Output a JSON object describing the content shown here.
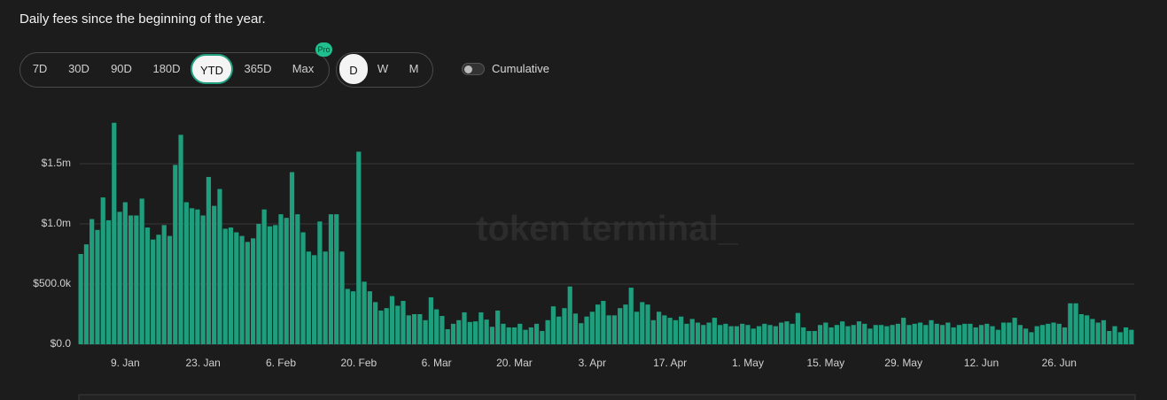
{
  "header": {
    "title": "Daily fees since the beginning of the year."
  },
  "range_buttons": [
    "7D",
    "30D",
    "90D",
    "180D",
    "YTD",
    "365D",
    "Max"
  ],
  "pro_badge": "Pro",
  "period_buttons": [
    "D",
    "W",
    "M"
  ],
  "toggle_label": "Cumulative",
  "watermark": "token terminal_",
  "chart_data": {
    "type": "bar",
    "color": "#1f9e7e",
    "grid": true,
    "ylim": [
      0,
      2000000
    ],
    "yticks": [
      {
        "value": 0,
        "label": "$0.0"
      },
      {
        "value": 500000,
        "label": "$500.0k"
      },
      {
        "value": 1000000,
        "label": "$1.0m"
      },
      {
        "value": 1500000,
        "label": "$1.5m"
      }
    ],
    "categories": [
      null,
      null,
      null,
      null,
      null,
      null,
      null,
      null,
      "9. Jan",
      null,
      null,
      null,
      null,
      null,
      null,
      null,
      null,
      null,
      null,
      null,
      null,
      null,
      "23. Jan",
      null,
      null,
      null,
      null,
      null,
      null,
      null,
      null,
      null,
      null,
      null,
      null,
      null,
      "6. Feb",
      null,
      null,
      null,
      null,
      null,
      null,
      null,
      null,
      null,
      null,
      null,
      null,
      null,
      "20. Feb",
      null,
      null,
      null,
      null,
      null,
      null,
      null,
      null,
      null,
      null,
      null,
      null,
      null,
      "6. Mar",
      null,
      null,
      null,
      null,
      null,
      null,
      null,
      null,
      null,
      null,
      null,
      null,
      null,
      "20. Mar",
      null,
      null,
      null,
      null,
      null,
      null,
      null,
      null,
      null,
      null,
      null,
      null,
      null,
      "3. Apr",
      null,
      null,
      null,
      null,
      null,
      null,
      null,
      null,
      null,
      null,
      null,
      null,
      null,
      "17. Apr",
      null,
      null,
      null,
      null,
      null,
      null,
      null,
      null,
      null,
      null,
      null,
      null,
      null,
      "1. May",
      null,
      null,
      null,
      null,
      null,
      null,
      null,
      null,
      null,
      null,
      null,
      null,
      null,
      "15. May",
      null,
      null,
      null,
      null,
      null,
      null,
      null,
      null,
      null,
      null,
      null,
      null,
      null,
      "29. May",
      null,
      null,
      null,
      null,
      null,
      null,
      null,
      null,
      null,
      null,
      null,
      null,
      null,
      "12. Jun",
      null,
      null,
      null,
      null,
      null,
      null,
      null,
      null,
      null,
      null,
      null,
      null,
      null,
      "26. Jun",
      null,
      null,
      null,
      null,
      null,
      null,
      null,
      null,
      null,
      null,
      null,
      null,
      null
    ],
    "values": [
      750000,
      830000,
      1040000,
      950000,
      1220000,
      1030000,
      1840000,
      1100000,
      1180000,
      1070000,
      1070000,
      1210000,
      970000,
      870000,
      910000,
      990000,
      900000,
      1490000,
      1740000,
      1180000,
      1130000,
      1120000,
      1070000,
      1390000,
      1150000,
      1290000,
      960000,
      970000,
      930000,
      900000,
      850000,
      880000,
      1000000,
      1120000,
      980000,
      990000,
      1080000,
      1050000,
      1430000,
      1080000,
      930000,
      770000,
      740000,
      1020000,
      770000,
      1080000,
      1080000,
      770000,
      460000,
      440000,
      1600000,
      520000,
      440000,
      350000,
      280000,
      300000,
      400000,
      320000,
      360000,
      240000,
      250000,
      250000,
      200000,
      390000,
      290000,
      235000,
      125000,
      170000,
      200000,
      265000,
      185000,
      190000,
      265000,
      205000,
      145000,
      280000,
      170000,
      140000,
      140000,
      170000,
      120000,
      140000,
      170000,
      110000,
      200000,
      315000,
      230000,
      300000,
      480000,
      255000,
      175000,
      230000,
      270000,
      330000,
      360000,
      240000,
      240000,
      300000,
      330000,
      470000,
      270000,
      350000,
      330000,
      200000,
      270000,
      240000,
      220000,
      200000,
      230000,
      170000,
      210000,
      180000,
      160000,
      180000,
      220000,
      160000,
      170000,
      150000,
      150000,
      170000,
      160000,
      130000,
      150000,
      170000,
      160000,
      150000,
      180000,
      190000,
      170000,
      260000,
      140000,
      110000,
      110000,
      160000,
      180000,
      140000,
      160000,
      190000,
      150000,
      160000,
      190000,
      170000,
      130000,
      160000,
      160000,
      150000,
      160000,
      170000,
      220000,
      160000,
      170000,
      180000,
      160000,
      200000,
      170000,
      160000,
      180000,
      140000,
      160000,
      170000,
      170000,
      140000,
      160000,
      170000,
      150000,
      120000,
      180000,
      180000,
      220000,
      160000,
      130000,
      100000,
      150000,
      160000,
      170000,
      180000,
      170000,
      140000,
      340000,
      340000,
      250000,
      240000,
      210000,
      180000,
      200000,
      110000,
      150000,
      100000,
      140000,
      120000
    ]
  }
}
